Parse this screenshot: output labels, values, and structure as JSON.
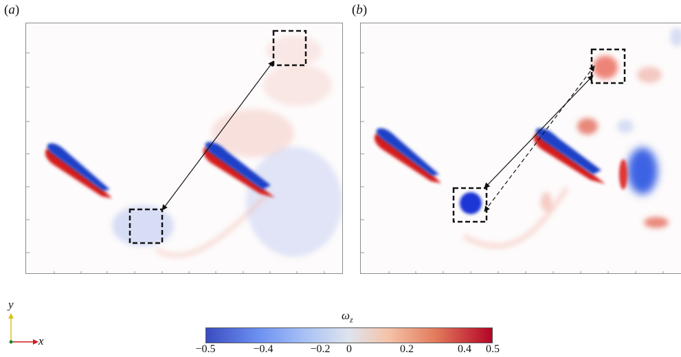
{
  "panels": [
    {
      "label_open": "(",
      "label_letter": "a",
      "label_close": ")"
    },
    {
      "label_open": "(",
      "label_letter": "b",
      "label_close": ")"
    }
  ],
  "axes": {
    "y": "y",
    "x": "x"
  },
  "colorbar": {
    "symbol": "ω",
    "subscript": "z",
    "ticks": [
      "−0.5",
      "−0.4",
      "−0.2",
      "0",
      "0.2",
      "0.4",
      "0.5"
    ],
    "range": [
      -0.5,
      0.5
    ],
    "colormap": [
      "#3a4cc0",
      "#dfe4ee",
      "#b40426"
    ]
  }
}
